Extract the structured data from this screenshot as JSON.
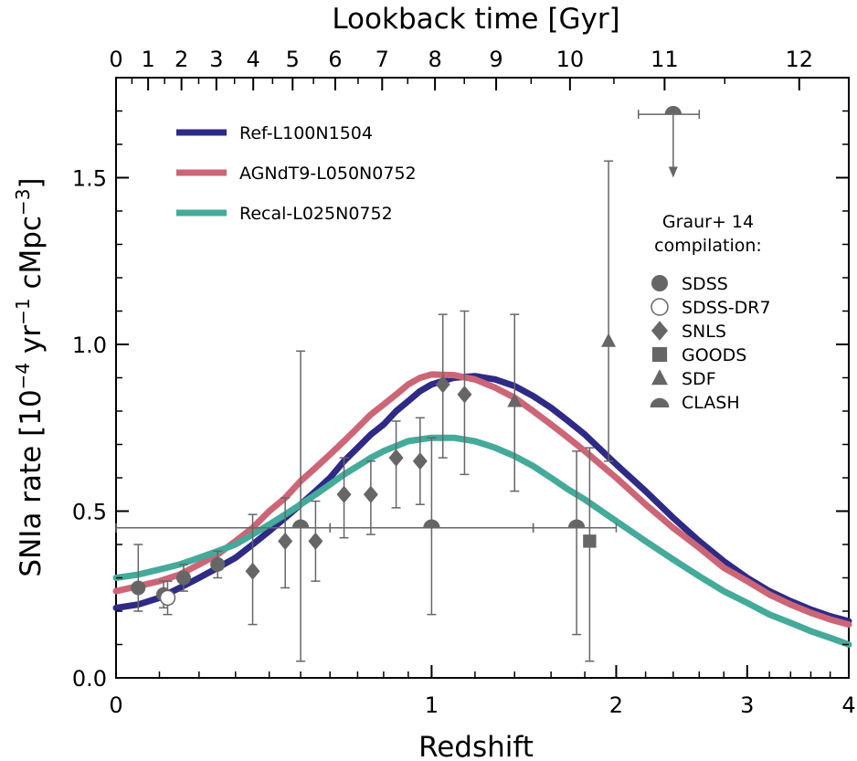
{
  "chart_data": {
    "type": "line",
    "xlabel": "Redshift",
    "ylabel_main": "SNIa rate [10",
    "ylabel_exp1": "−4",
    "ylabel_mid": " yr",
    "ylabel_exp2": "−1",
    "ylabel_tail": " cMpc",
    "ylabel_exp3": "−3",
    "ylabel_close": "]",
    "top_xlabel": "Lookback time [Gyr]",
    "xlim": [
      0,
      4
    ],
    "ylim": [
      0,
      1.8
    ],
    "x_ticks": [
      {
        "value": 0,
        "label": "0"
      },
      {
        "value": 1,
        "label": "1"
      },
      {
        "value": 2,
        "label": "2"
      },
      {
        "value": 3,
        "label": "3"
      },
      {
        "value": 4,
        "label": "4"
      }
    ],
    "x_scale": "log(1+z) (linear in a)",
    "y_ticks": [
      {
        "value": 0.0,
        "label": "0.0"
      },
      {
        "value": 0.5,
        "label": "0.5"
      },
      {
        "value": 1.0,
        "label": "1.0"
      },
      {
        "value": 1.5,
        "label": "1.5"
      }
    ],
    "top_ticks": [
      {
        "gyr": 0,
        "label": "0"
      },
      {
        "gyr": 1,
        "label": "1"
      },
      {
        "gyr": 2,
        "label": "2"
      },
      {
        "gyr": 3,
        "label": "3"
      },
      {
        "gyr": 4,
        "label": "4"
      },
      {
        "gyr": 5,
        "label": "5"
      },
      {
        "gyr": 6,
        "label": "6"
      },
      {
        "gyr": 7,
        "label": "7"
      },
      {
        "gyr": 8,
        "label": "8"
      },
      {
        "gyr": 9,
        "label": "9"
      },
      {
        "gyr": 10,
        "label": "10"
      },
      {
        "gyr": 11,
        "label": "11"
      },
      {
        "gyr": 12,
        "label": "12"
      }
    ],
    "series": [
      {
        "name": "Ref-L100N1504",
        "color": "#2e2a85",
        "points": [
          [
            0,
            0.21
          ],
          [
            0.05,
            0.22
          ],
          [
            0.1,
            0.24
          ],
          [
            0.15,
            0.27
          ],
          [
            0.2,
            0.3
          ],
          [
            0.25,
            0.33
          ],
          [
            0.3,
            0.36
          ],
          [
            0.35,
            0.4
          ],
          [
            0.4,
            0.44
          ],
          [
            0.45,
            0.48
          ],
          [
            0.5,
            0.52
          ],
          [
            0.55,
            0.56
          ],
          [
            0.6,
            0.6
          ],
          [
            0.65,
            0.65
          ],
          [
            0.7,
            0.69
          ],
          [
            0.75,
            0.73
          ],
          [
            0.8,
            0.76
          ],
          [
            0.85,
            0.8
          ],
          [
            0.9,
            0.83
          ],
          [
            0.95,
            0.86
          ],
          [
            1.0,
            0.88
          ],
          [
            1.1,
            0.9
          ],
          [
            1.2,
            0.905
          ],
          [
            1.3,
            0.895
          ],
          [
            1.4,
            0.875
          ],
          [
            1.5,
            0.845
          ],
          [
            1.6,
            0.81
          ],
          [
            1.7,
            0.77
          ],
          [
            1.8,
            0.73
          ],
          [
            2.0,
            0.64
          ],
          [
            2.2,
            0.56
          ],
          [
            2.4,
            0.48
          ],
          [
            2.6,
            0.41
          ],
          [
            2.8,
            0.35
          ],
          [
            3.0,
            0.3
          ],
          [
            3.2,
            0.26
          ],
          [
            3.4,
            0.23
          ],
          [
            3.6,
            0.205
          ],
          [
            3.8,
            0.185
          ],
          [
            4.0,
            0.17
          ]
        ]
      },
      {
        "name": "AGNdT9-L050N0752",
        "color": "#cc6677",
        "points": [
          [
            0,
            0.26
          ],
          [
            0.05,
            0.275
          ],
          [
            0.1,
            0.29
          ],
          [
            0.15,
            0.31
          ],
          [
            0.2,
            0.34
          ],
          [
            0.25,
            0.37
          ],
          [
            0.3,
            0.41
          ],
          [
            0.35,
            0.45
          ],
          [
            0.4,
            0.5
          ],
          [
            0.45,
            0.54
          ],
          [
            0.5,
            0.59
          ],
          [
            0.55,
            0.63
          ],
          [
            0.6,
            0.67
          ],
          [
            0.65,
            0.71
          ],
          [
            0.7,
            0.75
          ],
          [
            0.75,
            0.79
          ],
          [
            0.8,
            0.82
          ],
          [
            0.85,
            0.85
          ],
          [
            0.9,
            0.88
          ],
          [
            0.95,
            0.9
          ],
          [
            1.0,
            0.91
          ],
          [
            1.1,
            0.908
          ],
          [
            1.2,
            0.895
          ],
          [
            1.3,
            0.87
          ],
          [
            1.4,
            0.84
          ],
          [
            1.5,
            0.8
          ],
          [
            1.6,
            0.76
          ],
          [
            1.7,
            0.72
          ],
          [
            1.8,
            0.68
          ],
          [
            2.0,
            0.6
          ],
          [
            2.2,
            0.52
          ],
          [
            2.4,
            0.45
          ],
          [
            2.6,
            0.39
          ],
          [
            2.8,
            0.33
          ],
          [
            3.0,
            0.29
          ],
          [
            3.2,
            0.25
          ],
          [
            3.4,
            0.22
          ],
          [
            3.6,
            0.195
          ],
          [
            3.8,
            0.175
          ],
          [
            4.0,
            0.16
          ]
        ]
      },
      {
        "name": "Recal-L025N0752",
        "color": "#44aa99",
        "points": [
          [
            0,
            0.3
          ],
          [
            0.05,
            0.31
          ],
          [
            0.1,
            0.325
          ],
          [
            0.15,
            0.34
          ],
          [
            0.2,
            0.36
          ],
          [
            0.25,
            0.38
          ],
          [
            0.3,
            0.4
          ],
          [
            0.35,
            0.43
          ],
          [
            0.4,
            0.46
          ],
          [
            0.45,
            0.49
          ],
          [
            0.5,
            0.52
          ],
          [
            0.55,
            0.55
          ],
          [
            0.6,
            0.58
          ],
          [
            0.65,
            0.61
          ],
          [
            0.7,
            0.635
          ],
          [
            0.75,
            0.66
          ],
          [
            0.8,
            0.68
          ],
          [
            0.85,
            0.695
          ],
          [
            0.9,
            0.71
          ],
          [
            0.95,
            0.715
          ],
          [
            1.0,
            0.72
          ],
          [
            1.1,
            0.72
          ],
          [
            1.2,
            0.71
          ],
          [
            1.3,
            0.69
          ],
          [
            1.4,
            0.665
          ],
          [
            1.5,
            0.635
          ],
          [
            1.6,
            0.6
          ],
          [
            1.7,
            0.565
          ],
          [
            1.8,
            0.535
          ],
          [
            2.0,
            0.47
          ],
          [
            2.2,
            0.41
          ],
          [
            2.4,
            0.355
          ],
          [
            2.6,
            0.305
          ],
          [
            2.8,
            0.26
          ],
          [
            3.0,
            0.225
          ],
          [
            3.2,
            0.19
          ],
          [
            3.4,
            0.165
          ],
          [
            3.6,
            0.14
          ],
          [
            3.8,
            0.12
          ],
          [
            4.0,
            0.1
          ]
        ]
      }
    ],
    "observations": {
      "title_line1": "Graur+ 14",
      "title_line2": "compilation:",
      "marker_color": "#666666",
      "categories": [
        {
          "label": "SDSS",
          "marker": "filled-circle"
        },
        {
          "label": "SDSS-DR7",
          "marker": "open-circle"
        },
        {
          "label": "SNLS",
          "marker": "diamond"
        },
        {
          "label": "GOODS",
          "marker": "square"
        },
        {
          "label": "SDF",
          "marker": "triangle"
        },
        {
          "label": "CLASH",
          "marker": "half-circle"
        }
      ],
      "points": [
        {
          "set": "SDSS",
          "z": 0.05,
          "y": 0.27,
          "ylo": 0.2,
          "yhi": 0.4
        },
        {
          "set": "SDSS",
          "z": 0.11,
          "y": 0.25,
          "ylo": 0.21,
          "yhi": 0.29
        },
        {
          "set": "SDSS",
          "z": 0.16,
          "y": 0.3,
          "ylo": 0.26,
          "yhi": 0.34
        },
        {
          "set": "SDSS",
          "z": 0.25,
          "y": 0.34,
          "ylo": 0.3,
          "yhi": 0.38
        },
        {
          "set": "SDSS-DR7",
          "z": 0.12,
          "y": 0.24,
          "ylo": 0.19,
          "yhi": 0.29
        },
        {
          "set": "SNLS",
          "z": 0.35,
          "y": 0.32,
          "ylo": 0.16,
          "yhi": 0.49
        },
        {
          "set": "SNLS",
          "z": 0.45,
          "y": 0.41,
          "ylo": 0.27,
          "yhi": 0.54
        },
        {
          "set": "SNLS",
          "z": 0.55,
          "y": 0.41,
          "ylo": 0.29,
          "yhi": 0.53
        },
        {
          "set": "SNLS",
          "z": 0.65,
          "y": 0.55,
          "ylo": 0.42,
          "yhi": 0.66
        },
        {
          "set": "SNLS",
          "z": 0.75,
          "y": 0.55,
          "ylo": 0.43,
          "yhi": 0.65
        },
        {
          "set": "SNLS",
          "z": 0.85,
          "y": 0.66,
          "ylo": 0.51,
          "yhi": 0.77
        },
        {
          "set": "SNLS",
          "z": 0.95,
          "y": 0.65,
          "ylo": 0.52,
          "yhi": 0.78
        },
        {
          "set": "SNLS",
          "z": 1.05,
          "y": 0.88,
          "ylo": 0.66,
          "yhi": 1.09
        },
        {
          "set": "SNLS",
          "z": 1.15,
          "y": 0.85,
          "ylo": 0.61,
          "yhi": 1.1
        },
        {
          "set": "GOODS",
          "z": 1.83,
          "y": 0.41,
          "ylo": 0.05,
          "yhi": 0.69
        },
        {
          "set": "SDF",
          "z": 1.4,
          "y": 0.83,
          "ylo": 0.56,
          "yhi": 1.09
        },
        {
          "set": "SDF",
          "z": 1.95,
          "y": 1.01,
          "ylo": 0.65,
          "yhi": 1.55
        },
        {
          "set": "CLASH",
          "z": 0.5,
          "y": 0.45,
          "ylo": 0.05,
          "yhi": 0.98,
          "xlo": 0.0,
          "xhi": 0.6
        },
        {
          "set": "CLASH",
          "z": 1.0,
          "y": 0.45,
          "ylo": 0.19,
          "yhi": 0.72,
          "xlo": 0.6,
          "xhi": 1.5
        },
        {
          "set": "CLASH",
          "z": 1.75,
          "y": 0.45,
          "ylo": 0.13,
          "yhi": 0.68,
          "xlo": 1.5,
          "xhi": 2.0
        },
        {
          "set": "CLASH",
          "z": 2.4,
          "y": 1.69,
          "ylo": 1.5,
          "yhi": 1.69,
          "xlo": 2.15,
          "xhi": 2.6,
          "upper_limit": true
        }
      ]
    },
    "legend_position": "top-left",
    "grid": false
  }
}
